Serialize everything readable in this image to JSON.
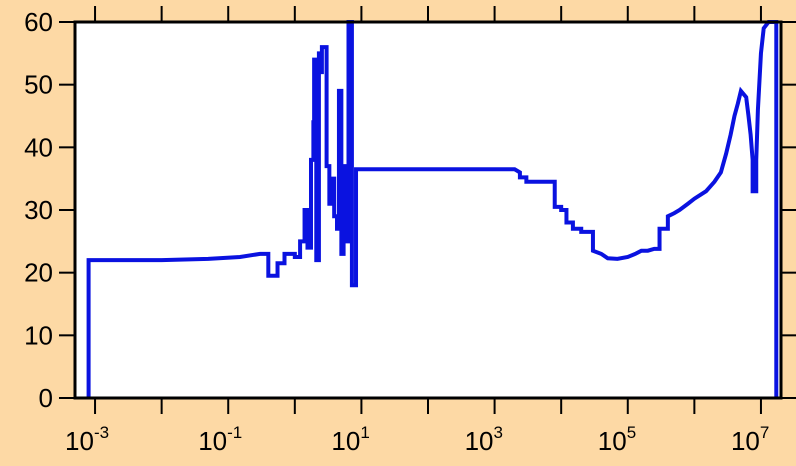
{
  "colors": {
    "background": "#fdd9a5",
    "plot_area": "#ffffff",
    "series": "#0a12e0",
    "axes": "#000000"
  },
  "chart_data": {
    "type": "line",
    "title": "",
    "xlabel": "",
    "ylabel": "",
    "x_scale": "log",
    "xlim": [
      0.0005,
      20000000
    ],
    "ylim": [
      0,
      60
    ],
    "grid": false,
    "step": true,
    "x_tick_labels": [
      {
        "base": "10",
        "exp": "-3",
        "value": 0.001
      },
      {
        "base": "10",
        "exp": "-1",
        "value": 0.1
      },
      {
        "base": "10",
        "exp": "1",
        "value": 10
      },
      {
        "base": "10",
        "exp": "3",
        "value": 1000
      },
      {
        "base": "10",
        "exp": "5",
        "value": 100000
      },
      {
        "base": "10",
        "exp": "7",
        "value": 10000000
      }
    ],
    "y_ticks": [
      "0",
      "10",
      "20",
      "30",
      "40",
      "50",
      "60"
    ],
    "series": [
      {
        "color": "#0a12e0",
        "points": [
          [
            0.0008,
            0
          ],
          [
            0.0008,
            22
          ],
          [
            0.002,
            22
          ],
          [
            0.01,
            22
          ],
          [
            0.05,
            22.2
          ],
          [
            0.15,
            22.5
          ],
          [
            0.3,
            23
          ],
          [
            0.4,
            23
          ],
          [
            0.4,
            19.5
          ],
          [
            0.55,
            19.5
          ],
          [
            0.55,
            21.5
          ],
          [
            0.7,
            21.5
          ],
          [
            0.7,
            23
          ],
          [
            1.0,
            23
          ],
          [
            1.0,
            22.5
          ],
          [
            1.2,
            22.5
          ],
          [
            1.2,
            25
          ],
          [
            1.4,
            25
          ],
          [
            1.4,
            30
          ],
          [
            1.55,
            30
          ],
          [
            1.55,
            24
          ],
          [
            1.75,
            24
          ],
          [
            1.75,
            38
          ],
          [
            1.9,
            38
          ],
          [
            1.9,
            44
          ],
          [
            1.95,
            44
          ],
          [
            1.95,
            54
          ],
          [
            2.1,
            54
          ],
          [
            2.1,
            22
          ],
          [
            2.3,
            22
          ],
          [
            2.3,
            55
          ],
          [
            2.45,
            55
          ],
          [
            2.45,
            52
          ],
          [
            2.55,
            52
          ],
          [
            2.55,
            56
          ],
          [
            3.0,
            56
          ],
          [
            3.0,
            37
          ],
          [
            3.3,
            37
          ],
          [
            3.3,
            31
          ],
          [
            3.6,
            31
          ],
          [
            3.6,
            35
          ],
          [
            3.9,
            35
          ],
          [
            3.9,
            29
          ],
          [
            4.3,
            29
          ],
          [
            4.3,
            27
          ],
          [
            4.6,
            27
          ],
          [
            4.6,
            49
          ],
          [
            5.0,
            49
          ],
          [
            5.0,
            23
          ],
          [
            5.4,
            23
          ],
          [
            5.4,
            37
          ],
          [
            5.9,
            37
          ],
          [
            5.9,
            25
          ],
          [
            6.4,
            25
          ],
          [
            6.4,
            60
          ],
          [
            7.2,
            60
          ],
          [
            7.2,
            18
          ],
          [
            8.3,
            18
          ],
          [
            8.3,
            36.5
          ],
          [
            10,
            36.5
          ],
          [
            100,
            36.5
          ],
          [
            1000,
            36.5
          ],
          [
            2000,
            36.5
          ],
          [
            2400,
            36
          ],
          [
            2400,
            35.2
          ],
          [
            3000,
            35.2
          ],
          [
            3000,
            34.5
          ],
          [
            8000,
            34.5
          ],
          [
            8000,
            30.5
          ],
          [
            10000,
            30.5
          ],
          [
            10000,
            30
          ],
          [
            12000,
            30
          ],
          [
            12000,
            28
          ],
          [
            15000,
            28
          ],
          [
            15000,
            27
          ],
          [
            20000,
            27
          ],
          [
            20000,
            26.5
          ],
          [
            30000,
            26.5
          ],
          [
            30000,
            23.5
          ],
          [
            40000,
            23
          ],
          [
            50000,
            22.3
          ],
          [
            70000,
            22.2
          ],
          [
            100000,
            22.5
          ],
          [
            130000,
            23
          ],
          [
            160000,
            23.5
          ],
          [
            200000,
            23.5
          ],
          [
            250000,
            23.8
          ],
          [
            300000,
            23.8
          ],
          [
            300000,
            27
          ],
          [
            400000,
            27
          ],
          [
            400000,
            29
          ],
          [
            500000,
            29.5
          ],
          [
            600000,
            30
          ],
          [
            800000,
            31
          ],
          [
            1000000,
            31.8
          ],
          [
            1500000,
            33
          ],
          [
            2000000,
            34.5
          ],
          [
            2500000,
            36
          ],
          [
            3000000,
            39
          ],
          [
            3500000,
            42
          ],
          [
            4000000,
            45
          ],
          [
            4500000,
            47
          ],
          [
            5000000,
            49
          ],
          [
            6000000,
            48
          ],
          [
            6500000,
            45
          ],
          [
            7000000,
            42
          ],
          [
            7500000,
            38
          ],
          [
            7500000,
            33
          ],
          [
            8500000,
            33
          ],
          [
            8500000,
            38
          ],
          [
            9000000,
            46
          ],
          [
            10000000,
            55
          ],
          [
            11000000,
            59
          ],
          [
            13000000,
            60
          ],
          [
            15000000,
            60
          ],
          [
            17000000,
            60
          ],
          [
            17000000,
            0
          ]
        ]
      }
    ]
  }
}
